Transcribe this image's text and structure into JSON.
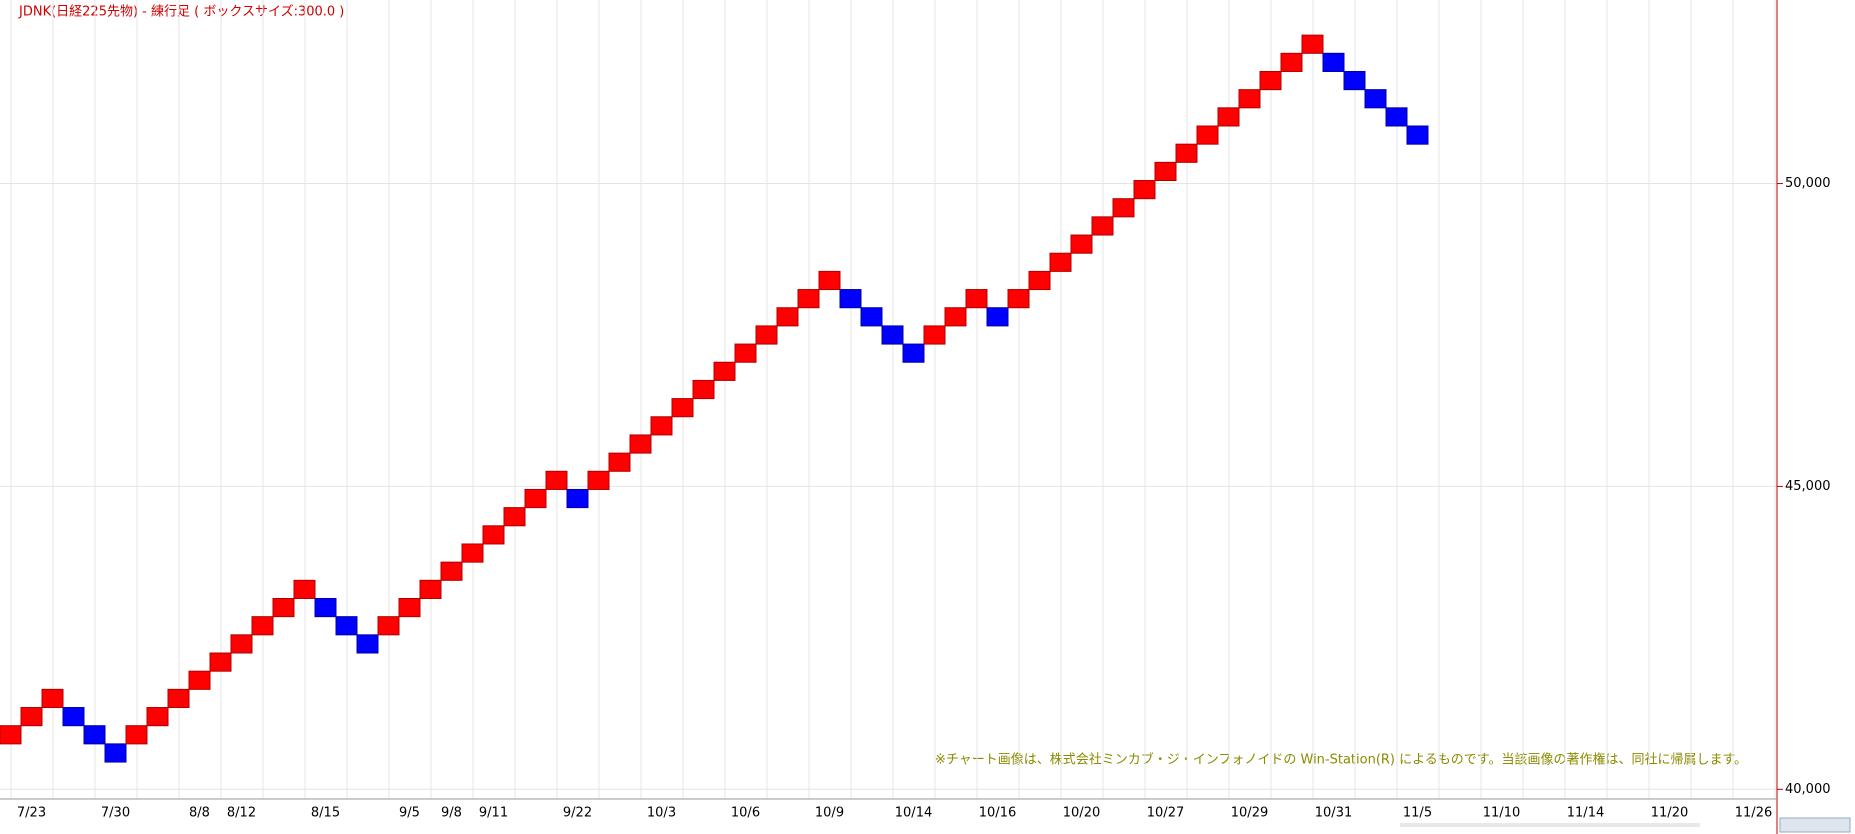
{
  "chart_data": {
    "type": "renko",
    "title": "JDNK(日経225先物) - 練行足 ( ボックスサイズ:300.0 )",
    "note": "※チャート画像は、株式会社ミンカブ・ジ・インフォノイドの Win-Station(R) によるものです。当該画像の著作権は、同社に帰属します。",
    "box_size": 300,
    "up_color": "#ff0000",
    "down_color": "#0000ff",
    "categories": [
      null,
      "7/23",
      null,
      null,
      null,
      "7/30",
      null,
      null,
      null,
      "8/8",
      null,
      "8/12",
      null,
      null,
      null,
      "8/15",
      null,
      null,
      null,
      "9/5",
      null,
      "9/8",
      null,
      "9/11",
      null,
      null,
      null,
      "9/22",
      null,
      null,
      null,
      "10/3",
      null,
      null,
      null,
      "10/6",
      null,
      null,
      null,
      "10/9",
      null,
      null,
      null,
      "10/14",
      null,
      null,
      null,
      "10/16",
      null,
      null,
      null,
      "10/20",
      null,
      null,
      null,
      "10/27",
      null,
      null,
      null,
      "10/29",
      null,
      null,
      null,
      "10/31",
      null,
      null,
      null,
      "11/5",
      null,
      null,
      null,
      "11/10",
      null,
      null,
      null,
      "11/14",
      null,
      null,
      null,
      "11/20",
      null,
      null,
      null,
      "11/26"
    ],
    "values": [
      40900,
      41200,
      41500,
      41200,
      40900,
      40600,
      40900,
      41200,
      41500,
      41800,
      42100,
      42400,
      42700,
      43000,
      43300,
      43000,
      42700,
      42400,
      42700,
      43000,
      43300,
      43600,
      43900,
      44200,
      44500,
      44800,
      45100,
      44800,
      45100,
      45400,
      45700,
      46000,
      46300,
      46600,
      46900,
      47200,
      47500,
      47800,
      48100,
      48400,
      48100,
      47800,
      47500,
      47200,
      47500,
      47800,
      48100,
      47800,
      48100,
      48400,
      48700,
      49000,
      49300,
      49600,
      49900,
      50200,
      50500,
      50800,
      51100,
      51400,
      51700,
      52000,
      52300,
      52000,
      51700,
      51400,
      51100,
      50800,
      null,
      null,
      null,
      null,
      null,
      null,
      null,
      null,
      null,
      null,
      null,
      null,
      null,
      null,
      null,
      null
    ],
    "ylim": [
      39840,
      53030
    ],
    "yticks": [
      {
        "value": 40000,
        "label": "40,000"
      },
      {
        "value": 45000,
        "label": "45,000"
      },
      {
        "value": 50000,
        "label": "50,000"
      }
    ],
    "grid": true
  }
}
